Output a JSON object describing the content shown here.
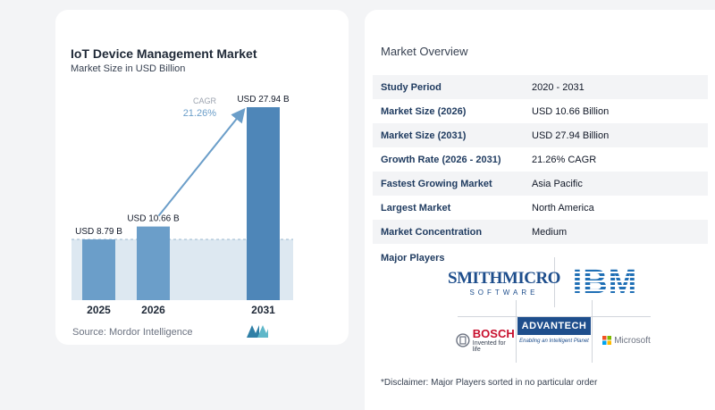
{
  "chart": {
    "title": "IoT Device Management Market",
    "subtitle": "Market Size in USD Billion",
    "source": "Source:  Mordor Intelligence"
  },
  "chart_data": {
    "type": "bar",
    "categories": [
      "2025",
      "2026",
      "2031"
    ],
    "values": [
      8.79,
      10.66,
      27.94
    ],
    "data_labels": [
      "USD 8.79 B",
      "USD 10.66 B",
      "USD 27.94 B"
    ],
    "title": "IoT Device Management Market",
    "subtitle": "Market Size in USD Billion",
    "annotation": {
      "label": "CAGR",
      "value": "21.26%"
    },
    "bar_color": "#6b9ec9",
    "highlight_bar_color": "#4e86b8",
    "band_color": "#dde8f1",
    "grid": false
  },
  "overview": {
    "title": "Market Overview",
    "rows": [
      {
        "label": "Study Period",
        "value": "2020 - 2031"
      },
      {
        "label": "Market Size (2026)",
        "value": "USD 10.66 Billion"
      },
      {
        "label": "Market Size (2031)",
        "value": "USD 27.94 Billion"
      },
      {
        "label": "Growth Rate (2026 - 2031)",
        "value": "21.26% CAGR"
      },
      {
        "label": "Fastest Growing Market",
        "value": "Asia Pacific"
      },
      {
        "label": "Largest Market",
        "value": "North America"
      },
      {
        "label": "Market Concentration",
        "value": "Medium"
      }
    ],
    "players_label": "Major Players",
    "players": {
      "smith_main": "SMITHMICRO",
      "smith_sub": "SOFTWARE",
      "ibm": "IBM",
      "bosch": "BOSCH",
      "bosch_sub": "Invented for life",
      "advantech": "ADVANTECH",
      "advantech_sub": "Enabling an Intelligent Planet",
      "microsoft": "Microsoft"
    },
    "disclaimer": "*Disclaimer: Major Players sorted in no particular order"
  }
}
